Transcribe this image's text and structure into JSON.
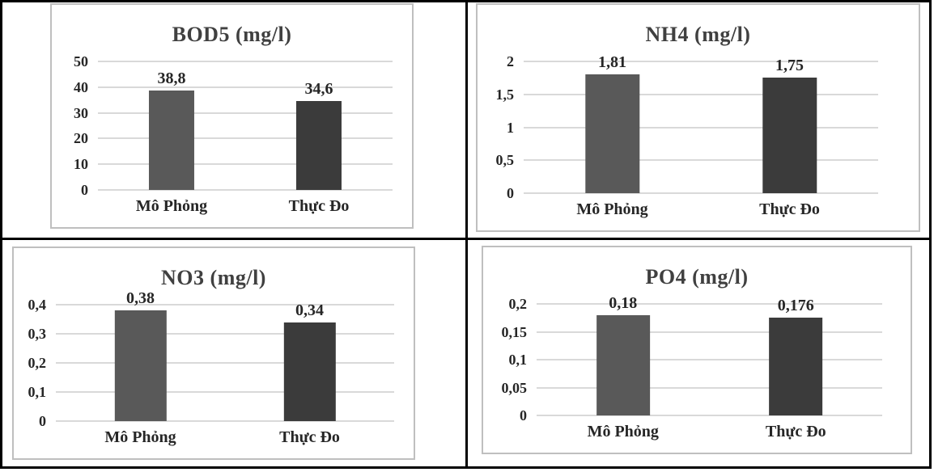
{
  "figure": {
    "layout": "2x2-grid",
    "background": "#ffffff",
    "table_border_color": "#000000",
    "chart_border_color": "#bfbfbf",
    "gridline_color": "#d9d9d9",
    "text_color": "#262626",
    "title_color": "#404040",
    "bar_color_mo_phong": "#595959",
    "bar_color_thuc_do": "#3b3b3b"
  },
  "chart_data": [
    {
      "type": "bar",
      "title": "BOD5 (mg/l)",
      "categories": [
        "Mô Phỏng",
        "Thực Đo"
      ],
      "values": [
        38.8,
        34.6
      ],
      "value_labels": [
        "38,8",
        "34,6"
      ],
      "bar_colors": [
        "#595959",
        "#3b3b3b"
      ],
      "ylim": [
        0,
        50
      ],
      "yticks": [
        0,
        10,
        20,
        30,
        40,
        50
      ],
      "ytick_labels": [
        "0",
        "10",
        "20",
        "30",
        "40",
        "50"
      ],
      "grid": true,
      "legend": "none"
    },
    {
      "type": "bar",
      "title": "NH4 (mg/l)",
      "categories": [
        "Mô Phỏng",
        "Thực Đo"
      ],
      "values": [
        1.81,
        1.75
      ],
      "value_labels": [
        "1,81",
        "1,75"
      ],
      "bar_colors": [
        "#595959",
        "#3b3b3b"
      ],
      "ylim": [
        0,
        2
      ],
      "yticks": [
        0,
        0.5,
        1,
        1.5,
        2
      ],
      "ytick_labels": [
        "0",
        "0,5",
        "1",
        "1,5",
        "2"
      ],
      "grid": true,
      "legend": "none"
    },
    {
      "type": "bar",
      "title": "NO3 (mg/l)",
      "categories": [
        "Mô Phỏng",
        "Thực Đo"
      ],
      "values": [
        0.38,
        0.34
      ],
      "value_labels": [
        "0,38",
        "0,34"
      ],
      "bar_colors": [
        "#595959",
        "#3b3b3b"
      ],
      "ylim": [
        0,
        0.4
      ],
      "yticks": [
        0,
        0.1,
        0.2,
        0.3,
        0.4
      ],
      "ytick_labels": [
        "0",
        "0,1",
        "0,2",
        "0,3",
        "0,4"
      ],
      "grid": true,
      "legend": "none"
    },
    {
      "type": "bar",
      "title": "PO4 (mg/l)",
      "categories": [
        "Mô Phỏng",
        "Thực Đo"
      ],
      "values": [
        0.18,
        0.176
      ],
      "value_labels": [
        "0,18",
        "0,176"
      ],
      "bar_colors": [
        "#595959",
        "#3b3b3b"
      ],
      "ylim": [
        0,
        0.2
      ],
      "yticks": [
        0,
        0.05,
        0.1,
        0.15,
        0.2
      ],
      "ytick_labels": [
        "0",
        "0,05",
        "0,1",
        "0,15",
        "0,2"
      ],
      "grid": true,
      "legend": "none"
    }
  ]
}
